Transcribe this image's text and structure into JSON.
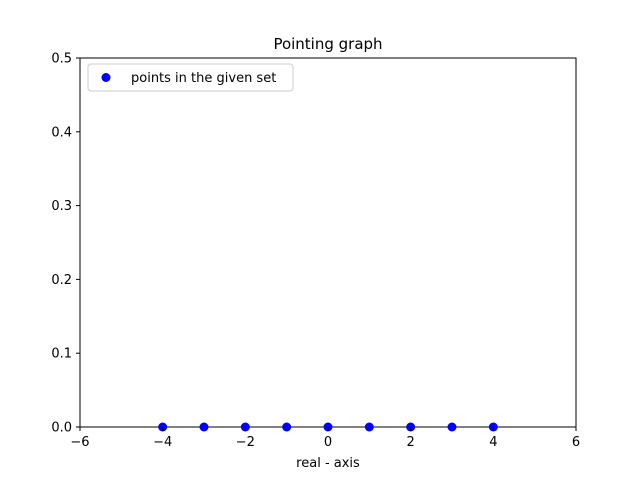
{
  "chart_data": {
    "type": "scatter",
    "title": "Pointing graph",
    "xlabel": "real - axis",
    "ylabel": "",
    "xlim": [
      -6,
      6
    ],
    "ylim": [
      0,
      0.5
    ],
    "xticks": [
      "−6",
      "−4",
      "−2",
      "0",
      "2",
      "4",
      "6"
    ],
    "xtick_values": [
      -6,
      -4,
      -2,
      0,
      2,
      4,
      6
    ],
    "yticks": [
      "0.0",
      "0.1",
      "0.2",
      "0.3",
      "0.4",
      "0.5"
    ],
    "ytick_values": [
      0,
      0.1,
      0.2,
      0.3,
      0.4,
      0.5
    ],
    "grid": false,
    "legend_position": "top-left",
    "series": [
      {
        "name": "points in the given set",
        "color": "#0000ff",
        "x": [
          -4,
          -3,
          -2,
          -1,
          0,
          1,
          2,
          3,
          4
        ],
        "y": [
          0,
          0,
          0,
          0,
          0,
          0,
          0,
          0,
          0
        ]
      }
    ]
  }
}
